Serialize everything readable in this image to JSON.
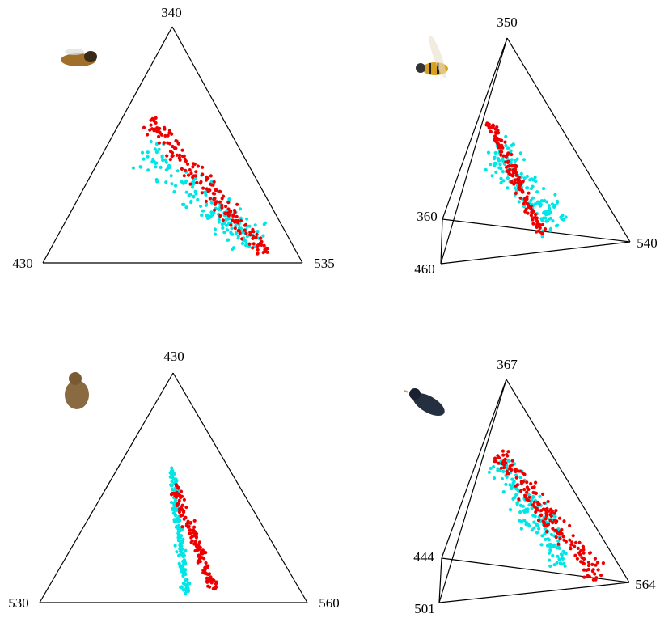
{
  "panels": [
    {
      "vertex_labels": [
        "340",
        "430",
        "535"
      ]
    },
    {
      "vertex_labels": [
        "350",
        "360",
        "460",
        "540"
      ]
    },
    {
      "vertex_labels": [
        "430",
        "530",
        "560"
      ]
    },
    {
      "vertex_labels": [
        "367",
        "444",
        "501",
        "564"
      ]
    }
  ]
}
